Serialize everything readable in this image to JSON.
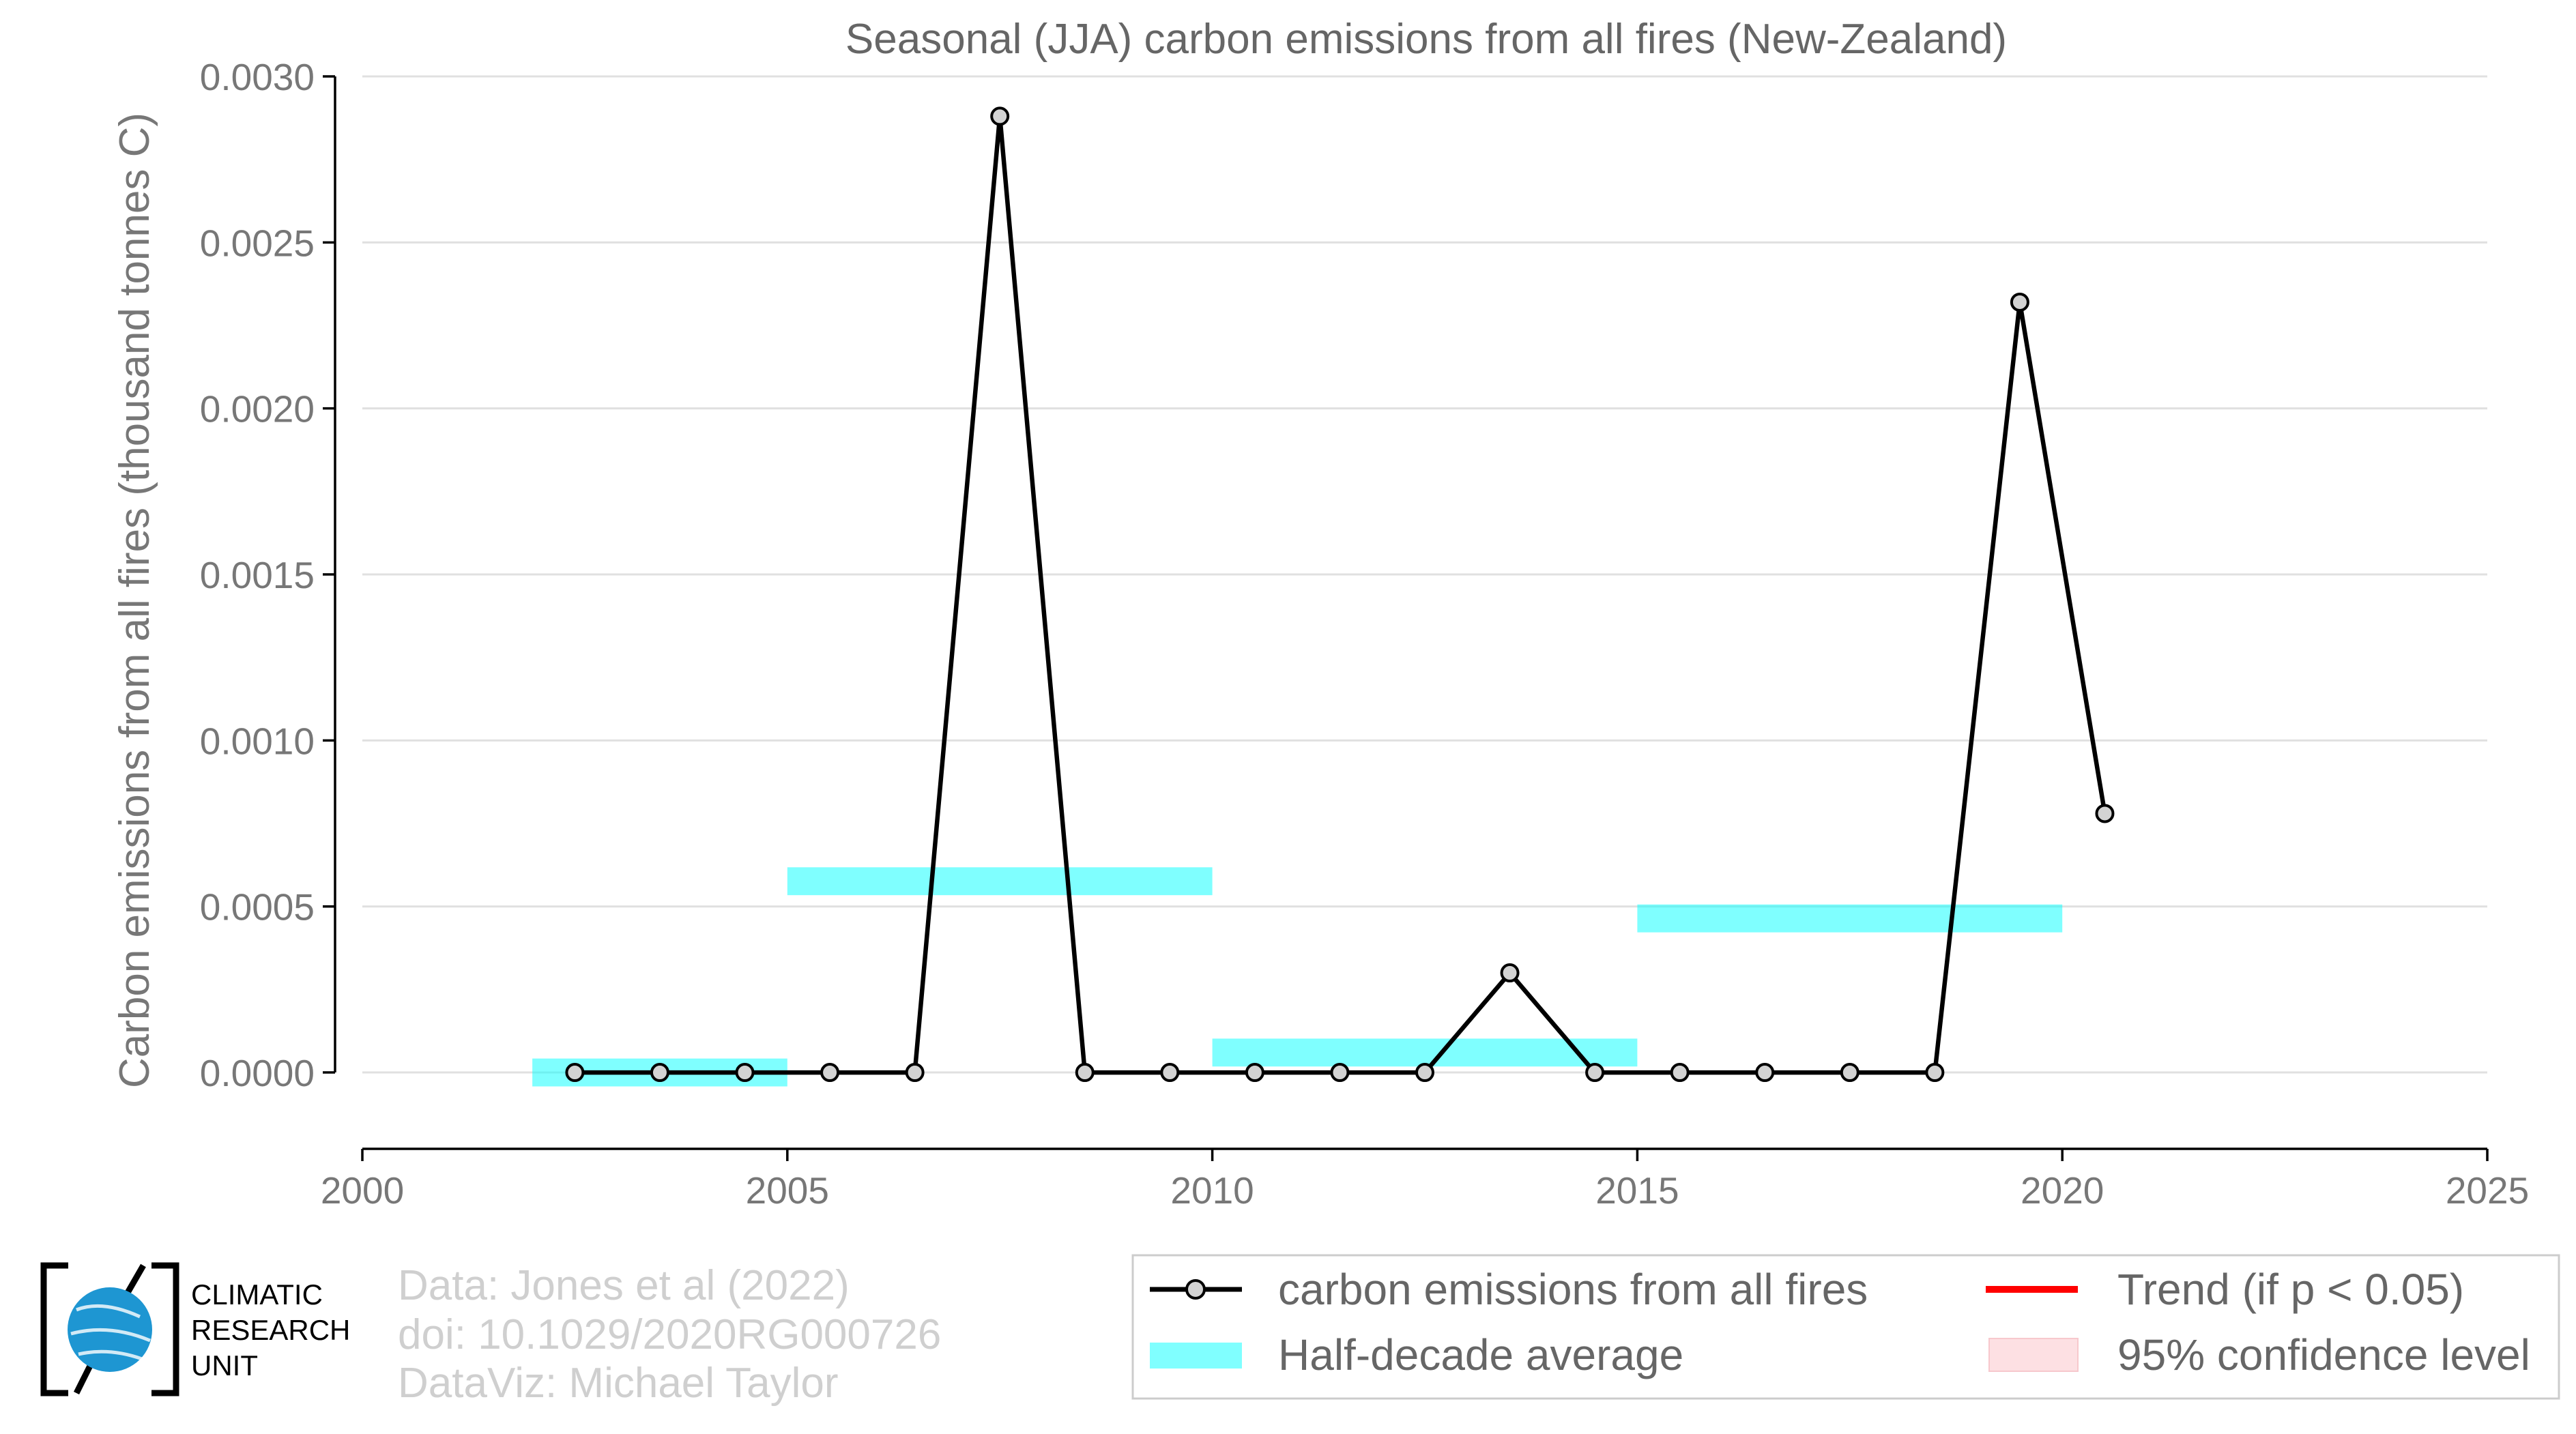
{
  "chart_data": {
    "type": "line",
    "title": "Seasonal (JJA) carbon emissions from all fires (New-Zealand)",
    "xlabel": "",
    "ylabel": "Carbon emissions from all fires (thousand tonnes C)",
    "xlim": [
      2000,
      2025
    ],
    "ylim": [
      -0.00023,
      0.003
    ],
    "x_ticks": [
      "2000",
      "2005",
      "2010",
      "2015",
      "2020",
      "2025"
    ],
    "y_ticks": [
      "0.0000",
      "0.0005",
      "0.0010",
      "0.0015",
      "0.0020",
      "0.0025",
      "0.0030"
    ],
    "grid": true,
    "series": [
      {
        "name": "carbon emissions from all fires",
        "color": "#000000",
        "points": [
          {
            "x": 2002.5,
            "y": 0.0
          },
          {
            "x": 2003.5,
            "y": 0.0
          },
          {
            "x": 2004.5,
            "y": 0.0
          },
          {
            "x": 2005.5,
            "y": 0.0
          },
          {
            "x": 2006.5,
            "y": 0.0
          },
          {
            "x": 2007.5,
            "y": 0.00288
          },
          {
            "x": 2008.5,
            "y": 0.0
          },
          {
            "x": 2009.5,
            "y": 0.0
          },
          {
            "x": 2010.5,
            "y": 0.0
          },
          {
            "x": 2011.5,
            "y": 0.0
          },
          {
            "x": 2012.5,
            "y": 0.0
          },
          {
            "x": 2013.5,
            "y": 0.0003
          },
          {
            "x": 2014.5,
            "y": 0.0
          },
          {
            "x": 2015.5,
            "y": 0.0
          },
          {
            "x": 2016.5,
            "y": 0.0
          },
          {
            "x": 2017.5,
            "y": 0.0
          },
          {
            "x": 2018.5,
            "y": 0.0
          },
          {
            "x": 2019.5,
            "y": 0.00232
          },
          {
            "x": 2020.5,
            "y": 0.00078
          }
        ]
      }
    ],
    "half_decade_averages": {
      "name": "Half-decade average",
      "color": "#00ffff",
      "segments": [
        {
          "x_start": 2002.0,
          "x_end": 2005.0,
          "y": 0.0
        },
        {
          "x_start": 2005.0,
          "x_end": 2010.0,
          "y": 0.000576
        },
        {
          "x_start": 2010.0,
          "x_end": 2015.0,
          "y": 6e-05
        },
        {
          "x_start": 2015.0,
          "x_end": 2020.0,
          "y": 0.000464
        }
      ],
      "band_half_width": 4.2e-05
    },
    "legend": {
      "placement": "bottom-right",
      "entries": [
        {
          "label": "carbon emissions from all fires",
          "kind": "line-marker",
          "color": "#000000"
        },
        {
          "label": "Trend (if p < 0.05)",
          "kind": "line",
          "color": "#ff0000"
        },
        {
          "label": "Half-decade average",
          "kind": "band",
          "color": "#80ffff"
        },
        {
          "label": "95% confidence level",
          "kind": "band",
          "color": "#fde0e3"
        }
      ]
    }
  },
  "credits": {
    "line1": "Data: Jones et al (2022)",
    "line2": "doi: 10.1029/2020RG000726",
    "line3": "DataViz: Michael Taylor"
  },
  "logo": {
    "line1": "CLIMATIC",
    "line2": "RESEARCH",
    "line3": "UNIT",
    "color": "#1e96d2"
  }
}
